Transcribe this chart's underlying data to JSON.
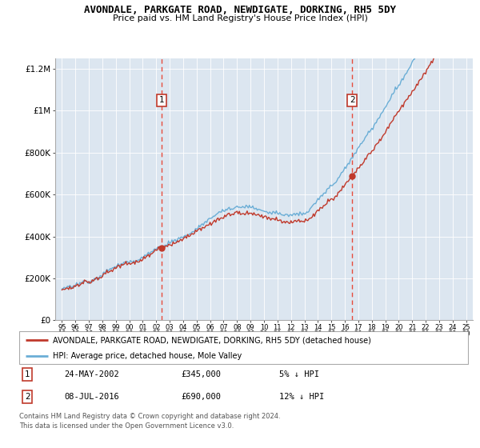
{
  "title": "AVONDALE, PARKGATE ROAD, NEWDIGATE, DORKING, RH5 5DY",
  "subtitle": "Price paid vs. HM Land Registry's House Price Index (HPI)",
  "background_color": "#dce6f0",
  "legend_line1": "AVONDALE, PARKGATE ROAD, NEWDIGATE, DORKING, RH5 5DY (detached house)",
  "legend_line2": "HPI: Average price, detached house, Mole Valley",
  "annotation1_date": "24-MAY-2002",
  "annotation1_value": "£345,000",
  "annotation1_pct": "5% ↓ HPI",
  "annotation2_date": "08-JUL-2016",
  "annotation2_value": "£690,000",
  "annotation2_pct": "12% ↓ HPI",
  "footer": "Contains HM Land Registry data © Crown copyright and database right 2024.\nThis data is licensed under the Open Government Licence v3.0.",
  "hpi_color": "#6baed6",
  "price_color": "#c0392b",
  "vline_color": "#e74c3c",
  "marker1_x": 2002.4,
  "marker2_x": 2016.55,
  "marker1_y": 345000,
  "marker2_y": 690000,
  "ylim": [
    0,
    1250000
  ],
  "xlim": [
    1994.5,
    2025.5
  ]
}
